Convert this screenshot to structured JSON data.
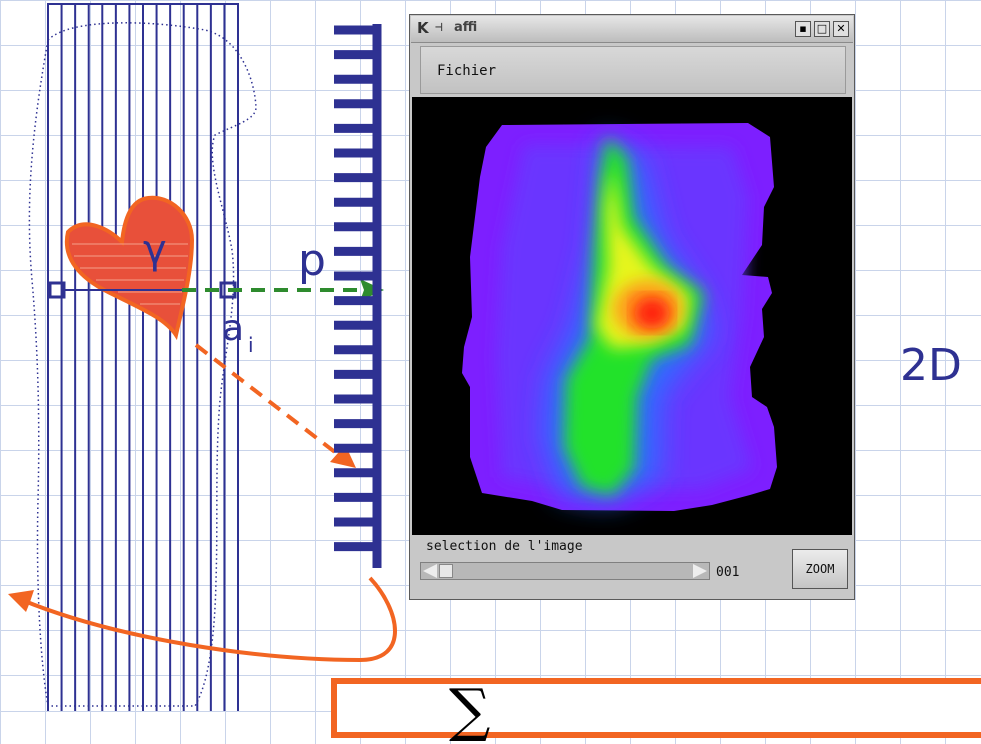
{
  "diagram": {
    "symbols": {
      "gamma": "γ",
      "p": "p",
      "a_i": "a",
      "a_i_sub": "i"
    },
    "dimension_label": "2D",
    "formula_symbol": "∑",
    "colors": {
      "grid": "#2e3192",
      "arrow_green": "#2e8b2e",
      "arrow_orange": "#f26522",
      "region_fill": "#e8503a",
      "text_blue": "#2e3192"
    }
  },
  "window": {
    "title": "affi",
    "icons": [
      "k-app-icon",
      "pin-icon",
      "minimize-icon",
      "maximize-icon",
      "close-icon"
    ],
    "menu": {
      "file_label": "Fichier"
    },
    "status_label": "selection de l'image",
    "slice_value": "001",
    "zoom_label": "ZOOM",
    "scroll_position": 0.02
  }
}
